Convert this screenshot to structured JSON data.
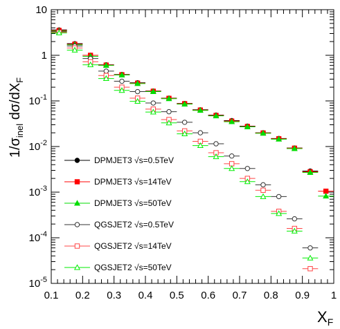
{
  "chart_data": {
    "type": "scatter",
    "xlabel": {
      "main": "X",
      "sub": "F"
    },
    "ylabel": {
      "p1": "1/",
      "sigma": "σ",
      "inel": "inel",
      "p2": " dσ/dX",
      "sub": "F"
    },
    "x_range": [
      0.1,
      1.0
    ],
    "y_range": [
      1e-05,
      10
    ],
    "y_scale": "log",
    "x_ticks": [
      "0.1",
      "0.2",
      "0.3",
      "0.4",
      "0.5",
      "0.6",
      "0.7",
      "0.8",
      "0.9",
      "1"
    ],
    "y_ticks": [
      {
        "base": "10",
        "exp": "-5"
      },
      {
        "base": "10",
        "exp": "-4"
      },
      {
        "base": "10",
        "exp": "-3"
      },
      {
        "base": "10",
        "exp": "-2"
      },
      {
        "base": "10",
        "exp": "-1"
      },
      {
        "base": "1",
        "exp": ""
      },
      {
        "base": "10",
        "exp": ""
      }
    ],
    "legend_position": "bottom-left",
    "series": [
      {
        "name": "DPMJET3 √s=0.5TeV",
        "color": "#000000",
        "marker": "circle-filled",
        "x": [
          0.125,
          0.175,
          0.225,
          0.275,
          0.325,
          0.375,
          0.425,
          0.475,
          0.525,
          0.575,
          0.625,
          0.675,
          0.725,
          0.775,
          0.825,
          0.875,
          0.925
        ],
        "y": [
          3.6,
          1.8,
          1.0,
          0.62,
          0.38,
          0.25,
          0.165,
          0.115,
          0.088,
          0.064,
          0.049,
          0.037,
          0.028,
          0.02,
          0.015,
          0.0093,
          0.0029
        ]
      },
      {
        "name": "DPMJET3 √s=14TeV",
        "color": "#ff0000",
        "marker": "square-filled",
        "x": [
          0.125,
          0.175,
          0.225,
          0.275,
          0.325,
          0.375,
          0.425,
          0.475,
          0.525,
          0.575,
          0.625,
          0.675,
          0.725,
          0.775,
          0.825,
          0.875,
          0.925,
          0.975
        ],
        "y": [
          3.5,
          1.75,
          1.0,
          0.61,
          0.375,
          0.245,
          0.163,
          0.114,
          0.087,
          0.063,
          0.048,
          0.036,
          0.0275,
          0.0198,
          0.0148,
          0.0092,
          0.0028,
          0.00105
        ]
      },
      {
        "name": "DPMJET3 √s=50TeV",
        "color": "#00dd00",
        "marker": "triangle-filled",
        "x": [
          0.125,
          0.175,
          0.225,
          0.275,
          0.325,
          0.375,
          0.425,
          0.475,
          0.525,
          0.575,
          0.625,
          0.675,
          0.725,
          0.775,
          0.825,
          0.875,
          0.925,
          0.975
        ],
        "y": [
          3.4,
          1.7,
          0.95,
          0.6,
          0.37,
          0.24,
          0.16,
          0.112,
          0.085,
          0.062,
          0.047,
          0.035,
          0.027,
          0.0195,
          0.0145,
          0.009,
          0.0027,
          0.00082
        ]
      },
      {
        "name": "QGSJET2 √s=0.5TeV",
        "color": "#333333",
        "marker": "circle-open",
        "x": [
          0.125,
          0.175,
          0.225,
          0.275,
          0.325,
          0.375,
          0.425,
          0.475,
          0.525,
          0.575,
          0.625,
          0.675,
          0.725,
          0.775,
          0.825,
          0.875,
          0.925
        ],
        "y": [
          3.3,
          1.6,
          0.85,
          0.45,
          0.27,
          0.16,
          0.09,
          0.058,
          0.034,
          0.02,
          0.0115,
          0.0062,
          0.0033,
          0.00145,
          0.0008,
          0.00026,
          6e-05
        ]
      },
      {
        "name": "QGSJET2 √s=14TeV",
        "color": "#ff4444",
        "marker": "square-open",
        "x": [
          0.125,
          0.175,
          0.225,
          0.275,
          0.325,
          0.375,
          0.425,
          0.475,
          0.525,
          0.575,
          0.625,
          0.675,
          0.725,
          0.775,
          0.825,
          0.875,
          0.925
        ],
        "y": [
          3.2,
          1.45,
          0.72,
          0.36,
          0.2,
          0.115,
          0.066,
          0.039,
          0.022,
          0.013,
          0.0073,
          0.0042,
          0.002,
          0.0011,
          0.00038,
          0.00016,
          2.1e-05
        ]
      },
      {
        "name": "QGSJET2 √s=50TeV",
        "color": "#00ee00",
        "marker": "triangle-open",
        "x": [
          0.125,
          0.175,
          0.225,
          0.275,
          0.325,
          0.375,
          0.425,
          0.475,
          0.525,
          0.575,
          0.625,
          0.675,
          0.725,
          0.775,
          0.825,
          0.875,
          0.925
        ],
        "y": [
          3.1,
          1.3,
          0.62,
          0.31,
          0.17,
          0.098,
          0.057,
          0.033,
          0.019,
          0.0105,
          0.006,
          0.0033,
          0.0017,
          0.0008,
          0.00034,
          0.00014,
          3.6e-05
        ]
      }
    ]
  }
}
